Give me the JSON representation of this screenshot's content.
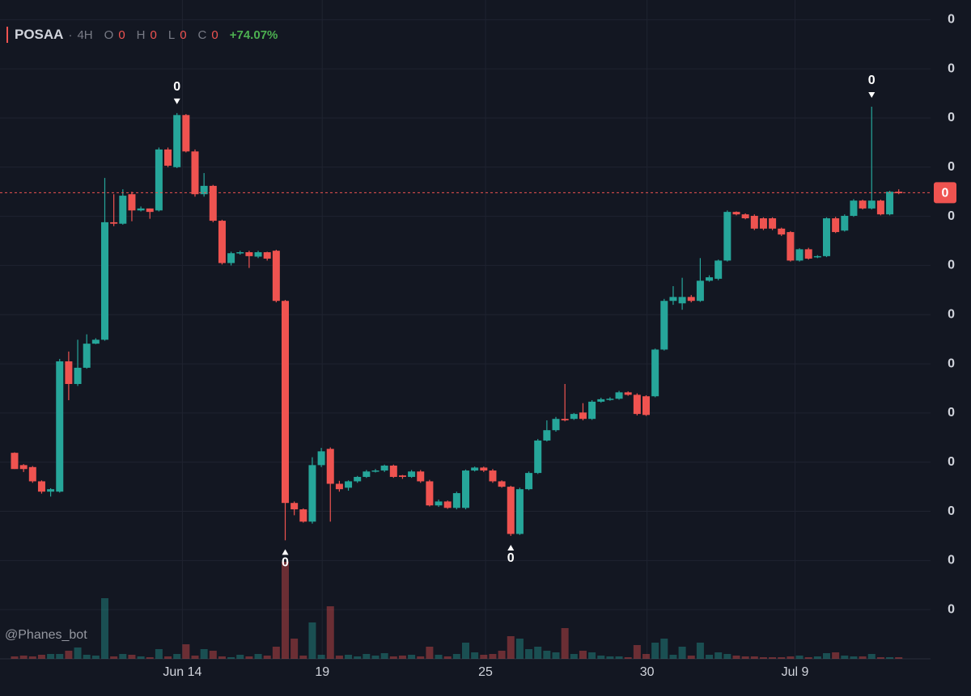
{
  "header": {
    "symbol": "POSAA",
    "interval": "4H",
    "o_label": "O",
    "o_value": "0",
    "h_label": "H",
    "h_value": "0",
    "l_label": "L",
    "l_value": "0",
    "c_label": "C",
    "c_value": "0",
    "change": "+74.07%"
  },
  "watermark": "@Phanes_bot",
  "chart_data": {
    "type": "candlestick",
    "up_color": "#26a69a",
    "down_color": "#ef5350",
    "grid": true,
    "ylim": [
      -1,
      12.4
    ],
    "yticks": [
      {
        "value": 12,
        "label": "0"
      },
      {
        "value": 11,
        "label": "0"
      },
      {
        "value": 10,
        "label": "0"
      },
      {
        "value": 9,
        "label": "0"
      },
      {
        "value": 8,
        "label": "0"
      },
      {
        "value": 7,
        "label": "0"
      },
      {
        "value": 6,
        "label": "0"
      },
      {
        "value": 5,
        "label": "0"
      },
      {
        "value": 4,
        "label": "0"
      },
      {
        "value": 3,
        "label": "0"
      },
      {
        "value": 2,
        "label": "0"
      },
      {
        "value": 1,
        "label": "0"
      },
      0
    ],
    "xticks": [
      {
        "value": 18.6,
        "label": "Jun 14"
      },
      {
        "value": 34.1,
        "label": "19"
      },
      {
        "value": 52.2,
        "label": "25"
      },
      {
        "value": 70.1,
        "label": "30"
      },
      {
        "value": 86.5,
        "label": "Jul 9"
      }
    ],
    "last_price": {
      "value": 8.48,
      "label": "0"
    },
    "markers": [
      {
        "candle": 18,
        "side": "above",
        "text": "0"
      },
      {
        "candle": 30,
        "side": "below",
        "text": "0"
      },
      {
        "candle": 55,
        "side": "below",
        "text": "0"
      },
      {
        "candle": 95,
        "side": "above",
        "text": "0"
      }
    ],
    "candles": [
      {
        "o": 3.19,
        "h": 3.2,
        "l": 2.86,
        "c": 2.86
      },
      {
        "o": 2.94,
        "h": 2.96,
        "l": 2.8,
        "c": 2.86
      },
      {
        "o": 2.9,
        "h": 2.92,
        "l": 2.58,
        "c": 2.61
      },
      {
        "o": 2.61,
        "h": 2.63,
        "l": 2.36,
        "c": 2.4
      },
      {
        "o": 2.4,
        "h": 2.47,
        "l": 2.3,
        "c": 2.45
      },
      {
        "o": 2.4,
        "h": 5.1,
        "l": 2.38,
        "c": 5.05
      },
      {
        "o": 5.05,
        "h": 5.25,
        "l": 4.26,
        "c": 4.59
      },
      {
        "o": 4.59,
        "h": 5.49,
        "l": 4.55,
        "c": 4.92
      },
      {
        "o": 4.92,
        "h": 5.6,
        "l": 4.9,
        "c": 5.41
      },
      {
        "o": 5.41,
        "h": 5.52,
        "l": 5.4,
        "c": 5.49
      },
      {
        "o": 5.49,
        "h": 8.78,
        "l": 5.47,
        "c": 7.88
      },
      {
        "o": 7.88,
        "h": 8.45,
        "l": 7.8,
        "c": 7.85
      },
      {
        "o": 7.85,
        "h": 8.55,
        "l": 7.83,
        "c": 8.42
      },
      {
        "o": 8.45,
        "h": 8.5,
        "l": 7.9,
        "c": 8.12
      },
      {
        "o": 8.12,
        "h": 8.2,
        "l": 8.1,
        "c": 8.16
      },
      {
        "o": 8.16,
        "h": 8.16,
        "l": 7.95,
        "c": 8.09
      },
      {
        "o": 8.12,
        "h": 9.4,
        "l": 8.1,
        "c": 9.36
      },
      {
        "o": 9.36,
        "h": 9.4,
        "l": 9.0,
        "c": 9.03
      },
      {
        "o": 9.0,
        "h": 10.1,
        "l": 8.98,
        "c": 10.06
      },
      {
        "o": 10.06,
        "h": 10.08,
        "l": 9.3,
        "c": 9.32
      },
      {
        "o": 9.32,
        "h": 9.36,
        "l": 8.4,
        "c": 8.45
      },
      {
        "o": 8.45,
        "h": 8.88,
        "l": 8.4,
        "c": 8.62
      },
      {
        "o": 8.62,
        "h": 8.64,
        "l": 7.88,
        "c": 7.91
      },
      {
        "o": 7.91,
        "h": 7.93,
        "l": 7.02,
        "c": 7.05
      },
      {
        "o": 7.05,
        "h": 7.28,
        "l": 7.0,
        "c": 7.25
      },
      {
        "o": 7.25,
        "h": 7.3,
        "l": 7.22,
        "c": 7.27
      },
      {
        "o": 7.27,
        "h": 7.3,
        "l": 6.95,
        "c": 7.19
      },
      {
        "o": 7.18,
        "h": 7.3,
        "l": 7.15,
        "c": 7.27
      },
      {
        "o": 7.27,
        "h": 7.28,
        "l": 7.1,
        "c": 7.14
      },
      {
        "o": 7.3,
        "h": 7.32,
        "l": 6.25,
        "c": 6.28
      },
      {
        "o": 6.28,
        "h": 6.3,
        "l": 1.41,
        "c": 2.17
      },
      {
        "o": 2.17,
        "h": 2.2,
        "l": 1.92,
        "c": 2.04
      },
      {
        "o": 2.04,
        "h": 2.06,
        "l": 1.77,
        "c": 1.79
      },
      {
        "o": 1.79,
        "h": 3.1,
        "l": 1.75,
        "c": 2.94
      },
      {
        "o": 2.94,
        "h": 3.29,
        "l": 2.9,
        "c": 3.22
      },
      {
        "o": 3.27,
        "h": 3.3,
        "l": 1.79,
        "c": 2.56
      },
      {
        "o": 2.56,
        "h": 2.62,
        "l": 2.4,
        "c": 2.45
      },
      {
        "o": 2.48,
        "h": 2.63,
        "l": 2.42,
        "c": 2.61
      },
      {
        "o": 2.61,
        "h": 2.72,
        "l": 2.58,
        "c": 2.7
      },
      {
        "o": 2.7,
        "h": 2.84,
        "l": 2.68,
        "c": 2.81
      },
      {
        "o": 2.81,
        "h": 2.86,
        "l": 2.79,
        "c": 2.83
      },
      {
        "o": 2.83,
        "h": 2.95,
        "l": 2.8,
        "c": 2.93
      },
      {
        "o": 2.93,
        "h": 2.95,
        "l": 2.68,
        "c": 2.7
      },
      {
        "o": 2.73,
        "h": 2.74,
        "l": 2.66,
        "c": 2.7
      },
      {
        "o": 2.7,
        "h": 2.84,
        "l": 2.68,
        "c": 2.81
      },
      {
        "o": 2.81,
        "h": 2.84,
        "l": 2.58,
        "c": 2.61
      },
      {
        "o": 2.61,
        "h": 2.64,
        "l": 2.1,
        "c": 2.12
      },
      {
        "o": 2.12,
        "h": 2.24,
        "l": 2.09,
        "c": 2.2
      },
      {
        "o": 2.2,
        "h": 2.22,
        "l": 2.05,
        "c": 2.07
      },
      {
        "o": 2.07,
        "h": 2.4,
        "l": 2.04,
        "c": 2.37
      },
      {
        "o": 2.07,
        "h": 2.85,
        "l": 2.04,
        "c": 2.83
      },
      {
        "o": 2.83,
        "h": 2.91,
        "l": 2.81,
        "c": 2.89
      },
      {
        "o": 2.89,
        "h": 2.91,
        "l": 2.8,
        "c": 2.83
      },
      {
        "o": 2.83,
        "h": 2.86,
        "l": 2.58,
        "c": 2.61
      },
      {
        "o": 2.61,
        "h": 2.63,
        "l": 2.48,
        "c": 2.5
      },
      {
        "o": 2.5,
        "h": 2.52,
        "l": 1.5,
        "c": 1.54
      },
      {
        "o": 1.54,
        "h": 2.48,
        "l": 1.52,
        "c": 2.45
      },
      {
        "o": 2.45,
        "h": 2.81,
        "l": 2.43,
        "c": 2.78
      },
      {
        "o": 2.78,
        "h": 3.47,
        "l": 2.76,
        "c": 3.44
      },
      {
        "o": 3.44,
        "h": 3.85,
        "l": 3.42,
        "c": 3.65
      },
      {
        "o": 3.65,
        "h": 3.92,
        "l": 3.62,
        "c": 3.88
      },
      {
        "o": 3.88,
        "h": 4.59,
        "l": 3.83,
        "c": 3.85
      },
      {
        "o": 3.88,
        "h": 4.0,
        "l": 3.86,
        "c": 3.98
      },
      {
        "o": 4.01,
        "h": 4.2,
        "l": 3.85,
        "c": 3.88
      },
      {
        "o": 3.88,
        "h": 4.26,
        "l": 3.86,
        "c": 4.23
      },
      {
        "o": 4.23,
        "h": 4.31,
        "l": 4.21,
        "c": 4.28
      },
      {
        "o": 4.28,
        "h": 4.32,
        "l": 4.25,
        "c": 4.29
      },
      {
        "o": 4.29,
        "h": 4.45,
        "l": 4.27,
        "c": 4.42
      },
      {
        "o": 4.42,
        "h": 4.44,
        "l": 4.35,
        "c": 4.37
      },
      {
        "o": 4.37,
        "h": 4.4,
        "l": 3.95,
        "c": 3.98
      },
      {
        "o": 4.34,
        "h": 4.36,
        "l": 3.94,
        "c": 3.96
      },
      {
        "o": 4.34,
        "h": 5.31,
        "l": 4.32,
        "c": 5.29
      },
      {
        "o": 5.29,
        "h": 6.32,
        "l": 5.27,
        "c": 6.28
      },
      {
        "o": 6.28,
        "h": 6.58,
        "l": 6.2,
        "c": 6.36
      },
      {
        "o": 6.23,
        "h": 6.75,
        "l": 6.1,
        "c": 6.36
      },
      {
        "o": 6.36,
        "h": 6.4,
        "l": 6.25,
        "c": 6.28
      },
      {
        "o": 6.28,
        "h": 7.15,
        "l": 6.26,
        "c": 6.69
      },
      {
        "o": 6.69,
        "h": 6.8,
        "l": 6.67,
        "c": 6.76
      },
      {
        "o": 6.73,
        "h": 7.12,
        "l": 6.7,
        "c": 7.1
      },
      {
        "o": 7.1,
        "h": 8.12,
        "l": 7.08,
        "c": 8.09
      },
      {
        "o": 8.09,
        "h": 8.1,
        "l": 8.02,
        "c": 8.04
      },
      {
        "o": 8.04,
        "h": 8.06,
        "l": 7.94,
        "c": 7.96
      },
      {
        "o": 8.01,
        "h": 8.04,
        "l": 7.72,
        "c": 7.75
      },
      {
        "o": 7.96,
        "h": 7.98,
        "l": 7.72,
        "c": 7.75
      },
      {
        "o": 7.96,
        "h": 7.98,
        "l": 7.72,
        "c": 7.75
      },
      {
        "o": 7.75,
        "h": 7.77,
        "l": 7.6,
        "c": 7.63
      },
      {
        "o": 7.68,
        "h": 7.7,
        "l": 7.08,
        "c": 7.1
      },
      {
        "o": 7.1,
        "h": 7.35,
        "l": 7.08,
        "c": 7.33
      },
      {
        "o": 7.33,
        "h": 7.36,
        "l": 7.12,
        "c": 7.14
      },
      {
        "o": 7.17,
        "h": 7.21,
        "l": 7.15,
        "c": 7.19
      },
      {
        "o": 7.19,
        "h": 7.98,
        "l": 7.17,
        "c": 7.96
      },
      {
        "o": 7.96,
        "h": 7.99,
        "l": 7.66,
        "c": 7.68
      },
      {
        "o": 7.71,
        "h": 8.04,
        "l": 7.69,
        "c": 8.01
      },
      {
        "o": 8.01,
        "h": 8.35,
        "l": 7.99,
        "c": 8.32
      },
      {
        "o": 8.32,
        "h": 8.34,
        "l": 8.14,
        "c": 8.16
      },
      {
        "o": 8.16,
        "h": 10.23,
        "l": 8.14,
        "c": 8.32
      },
      {
        "o": 8.32,
        "h": 8.34,
        "l": 8.02,
        "c": 8.04
      },
      {
        "o": 8.04,
        "h": 8.52,
        "l": 8.02,
        "c": 8.5
      },
      {
        "o": 8.5,
        "h": 8.55,
        "l": 8.45,
        "c": 8.47
      }
    ],
    "volume": [
      3,
      4,
      3,
      5,
      6,
      6,
      10,
      14,
      5,
      4,
      75,
      3,
      6,
      5,
      3,
      2,
      12,
      3,
      6,
      18,
      4,
      12,
      10,
      3,
      2,
      5,
      3,
      6,
      4,
      15,
      120,
      25,
      4,
      45,
      5,
      65,
      4,
      5,
      3,
      6,
      4,
      7,
      3,
      4,
      5,
      3,
      15,
      5,
      3,
      6,
      20,
      8,
      5,
      6,
      10,
      28,
      25,
      12,
      15,
      10,
      8,
      38,
      6,
      10,
      8,
      4,
      3,
      3,
      2,
      17,
      6,
      20,
      25,
      5,
      15,
      4,
      20,
      5,
      8,
      6,
      4,
      3,
      3,
      2,
      2,
      2,
      3,
      4,
      2,
      3,
      7,
      8,
      4,
      3,
      3,
      6,
      2,
      2,
      2
    ]
  }
}
